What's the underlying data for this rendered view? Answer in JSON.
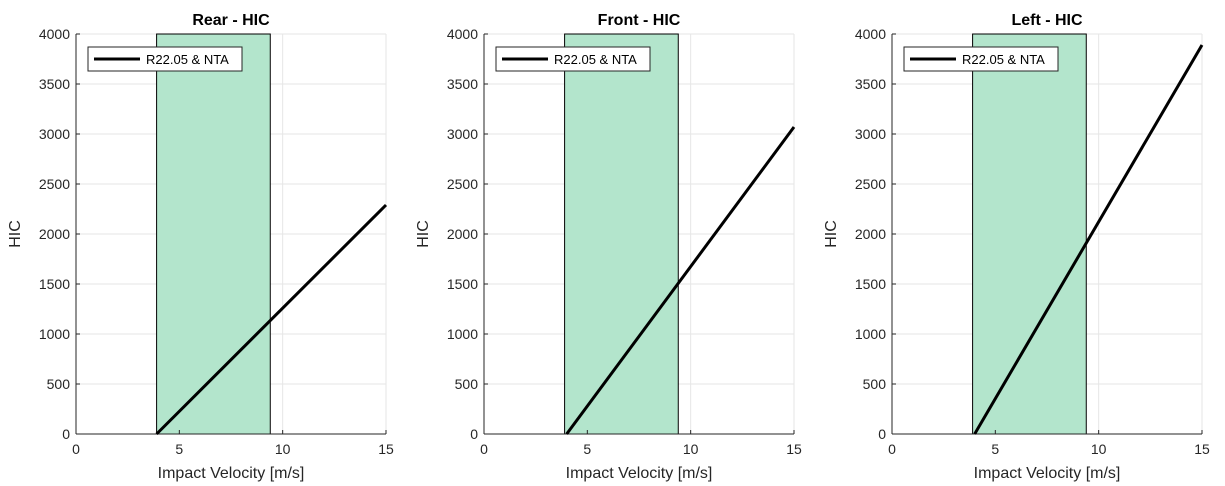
{
  "chart_data": [
    {
      "type": "line",
      "title": "Rear - HIC",
      "xlabel": "Impact Velocity [m/s]",
      "ylabel": "HIC",
      "xlim": [
        0,
        15
      ],
      "ylim": [
        0,
        4000
      ],
      "xticks": [
        0,
        5,
        10,
        15
      ],
      "yticks": [
        0,
        500,
        1000,
        1500,
        2000,
        2500,
        3000,
        3500,
        4000
      ],
      "grid": true,
      "legend_location": "top-left",
      "shaded_band": {
        "x": [
          3.9,
          9.4
        ],
        "color": "#b3e5cc"
      },
      "series": [
        {
          "name": "R22.05 & NTA",
          "color": "#000000",
          "x": [
            3.9,
            15
          ],
          "y": [
            0,
            2290
          ]
        }
      ]
    },
    {
      "type": "line",
      "title": "Front - HIC",
      "xlabel": "Impact Velocity [m/s]",
      "ylabel": "HIC",
      "xlim": [
        0,
        15
      ],
      "ylim": [
        0,
        4000
      ],
      "xticks": [
        0,
        5,
        10,
        15
      ],
      "yticks": [
        0,
        500,
        1000,
        1500,
        2000,
        2500,
        3000,
        3500,
        4000
      ],
      "grid": true,
      "legend_location": "top-left",
      "shaded_band": {
        "x": [
          3.9,
          9.4
        ],
        "color": "#b3e5cc"
      },
      "series": [
        {
          "name": "R22.05 & NTA",
          "color": "#000000",
          "x": [
            4.0,
            15
          ],
          "y": [
            0,
            3070
          ]
        }
      ]
    },
    {
      "type": "line",
      "title": "Left - HIC",
      "xlabel": "Impact Velocity [m/s]",
      "ylabel": "HIC",
      "xlim": [
        0,
        15
      ],
      "ylim": [
        0,
        4000
      ],
      "xticks": [
        0,
        5,
        10,
        15
      ],
      "yticks": [
        0,
        500,
        1000,
        1500,
        2000,
        2500,
        3000,
        3500,
        4000
      ],
      "grid": true,
      "legend_location": "top-left",
      "shaded_band": {
        "x": [
          3.9,
          9.4
        ],
        "color": "#b3e5cc"
      },
      "series": [
        {
          "name": "R22.05 & NTA",
          "color": "#000000",
          "x": [
            4.0,
            15
          ],
          "y": [
            0,
            3890
          ]
        }
      ]
    }
  ]
}
